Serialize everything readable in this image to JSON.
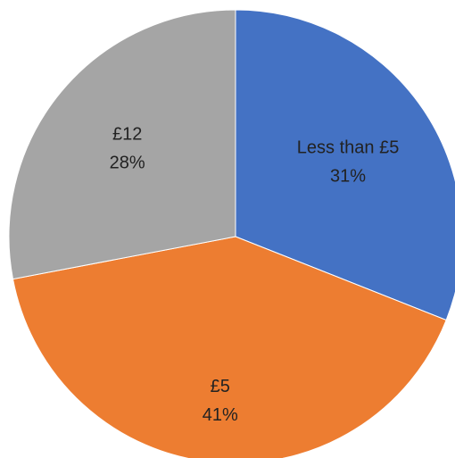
{
  "chart_data": {
    "type": "pie",
    "title": "",
    "start_angle_deg": 90,
    "direction": "clockwise",
    "slices": [
      {
        "label": "Less than £5",
        "percent_label": "31%",
        "value": 31,
        "color": "#4472C4"
      },
      {
        "label": "£5",
        "percent_label": "41%",
        "value": 41,
        "color": "#ED7D31"
      },
      {
        "label": "£12",
        "percent_label": "28%",
        "value": 28,
        "color": "#A5A5A5"
      }
    ]
  }
}
